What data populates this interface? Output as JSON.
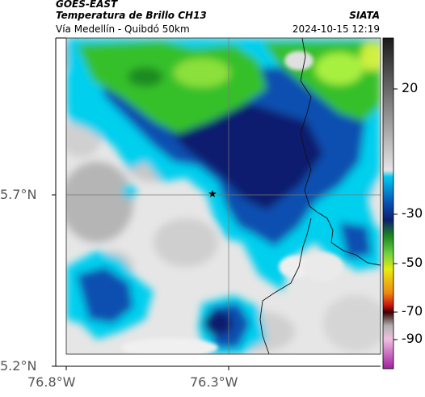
{
  "header": {
    "satellite": "GOES-EAST",
    "product": "Temperatura de Brillo CH13",
    "route": "Vía Medellín - Quibdó 50km",
    "brand": "SIATA",
    "timestamp": "2024-10-15 12:19"
  },
  "axes": {
    "lat_labels": [
      "5.7°N",
      "5.2°N"
    ],
    "lon_labels": [
      "76.8°W",
      "76.3°W"
    ]
  },
  "colorbar": {
    "labels": [
      "20",
      "-30",
      "-50",
      "-70",
      "-90"
    ],
    "palette": {
      "gray": "#bfbfbf",
      "light": "#efefef",
      "cyan": "#00cfee",
      "blue": "#0a4fb0",
      "navy": "#0c1f6e",
      "green": "#36c02a",
      "lime": "#a8f040",
      "yellow": "#e8ec10",
      "orange": "#ef8a10",
      "red": "#c81010",
      "magenta": "#b040b0"
    }
  },
  "map": {
    "marker": "star-marker"
  }
}
